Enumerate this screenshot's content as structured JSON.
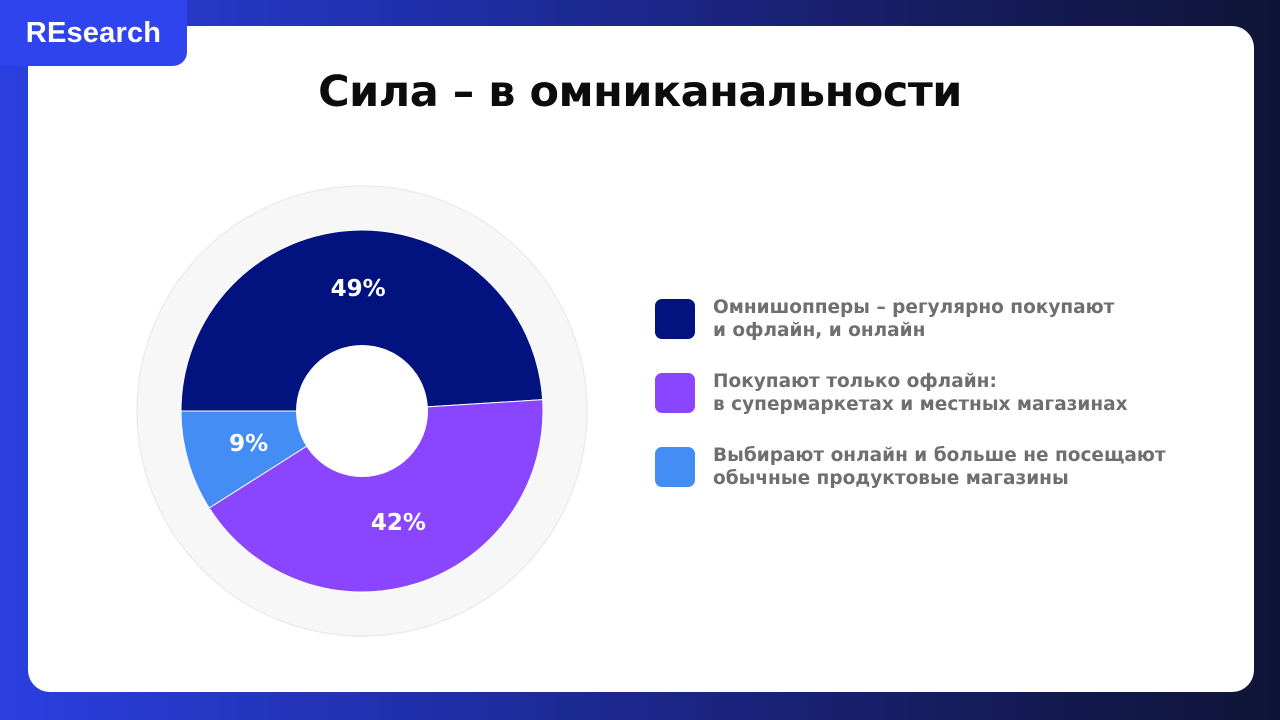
{
  "badge": {
    "label": "REsearch"
  },
  "slide": {
    "title": "Сила – в омниканальности"
  },
  "colors": {
    "dark_navy": "#02137f",
    "purple": "#8a46ff",
    "blue": "#438df4",
    "ring": "#f7f7f7"
  },
  "chart_data": {
    "type": "pie",
    "variant": "donut",
    "series": [
      {
        "name": "Омнишопперы – регулярно покупают и офлайн, и онлайн",
        "value": 49,
        "label": "49%",
        "color": "#02137f"
      },
      {
        "name": "Покупают только офлайн: в супермаркетах и местных магазинах",
        "value": 42,
        "label": "42%",
        "color": "#8a46ff"
      },
      {
        "name": "Выбирают онлайн и больше не посещают обычные продуктовые магазины",
        "value": 9,
        "label": "9%",
        "color": "#438df4"
      }
    ],
    "legend_position": "right"
  },
  "legend": [
    {
      "line1": "Омнишопперы – регулярно покупают",
      "line2": "и офлайн, и онлайн",
      "color": "#02137f"
    },
    {
      "line1": "Покупают только офлайн:",
      "line2": "в супермаркетах и местных магазинах",
      "color": "#8a46ff"
    },
    {
      "line1": "Выбирают онлайн и больше не посещают",
      "line2": "обычные продуктовые магазины",
      "color": "#438df4"
    }
  ]
}
